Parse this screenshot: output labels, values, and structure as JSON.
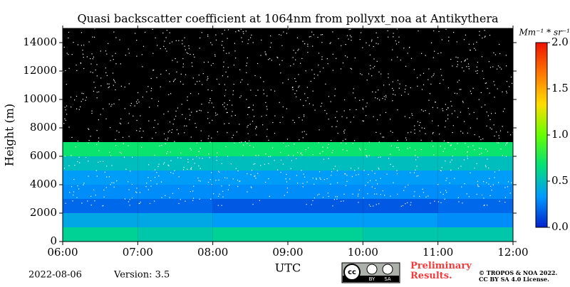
{
  "chart_data": {
    "type": "heatmap",
    "title": "Quasi backscatter coefficient at 1064nm from pollyxt_noa at Antikythera",
    "x_label": "UTC",
    "y_label": "Height (m)",
    "colorbar_label": "Mm⁻¹ * sr⁻¹",
    "x": [
      6.5,
      7.5,
      8.5,
      9.5,
      10.5,
      11.5
    ],
    "y": [
      500,
      1500,
      2500,
      3500,
      4500,
      5500,
      6500,
      7500,
      8500,
      9500,
      10500,
      11500,
      12500,
      13500,
      14500
    ],
    "z": [
      [
        0.6,
        0.55,
        0.6,
        0.6,
        0.55,
        0.55
      ],
      [
        0.4,
        0.4,
        0.35,
        0.35,
        0.35,
        0.3
      ],
      [
        0.2,
        0.2,
        0.15,
        0.15,
        0.15,
        0.2
      ],
      [
        0.3,
        0.3,
        0.3,
        0.3,
        0.3,
        0.3
      ],
      [
        0.35,
        0.35,
        0.35,
        0.35,
        0.35,
        0.35
      ],
      [
        0.5,
        0.5,
        0.5,
        0.5,
        0.5,
        0.5
      ],
      [
        0.7,
        0.7,
        0.7,
        0.7,
        0.7,
        0.7
      ],
      [
        null,
        null,
        null,
        null,
        null,
        null
      ],
      [
        null,
        null,
        null,
        null,
        null,
        null
      ],
      [
        null,
        null,
        null,
        null,
        null,
        null
      ],
      [
        null,
        null,
        null,
        null,
        null,
        null
      ],
      [
        null,
        null,
        null,
        null,
        null,
        null
      ],
      [
        null,
        null,
        null,
        null,
        null,
        null
      ],
      [
        null,
        null,
        null,
        null,
        null,
        null
      ],
      [
        null,
        null,
        null,
        null,
        null,
        null
      ]
    ],
    "colors": [
      "#0022cc",
      "#0099ff",
      "#00e07a",
      "#66ff00",
      "#ffdd00",
      "#ff7700",
      "#ee1100"
    ],
    "background": "#000000",
    "xlim": [
      6,
      12
    ],
    "xticks": [
      {
        "value": 6,
        "label": "06:00"
      },
      {
        "value": 7,
        "label": "07:00"
      },
      {
        "value": 8,
        "label": "08:00"
      },
      {
        "value": 9,
        "label": "09:00"
      },
      {
        "value": 10,
        "label": "10:00"
      },
      {
        "value": 11,
        "label": "11:00"
      },
      {
        "value": 12,
        "label": "12:00"
      }
    ],
    "ylim": [
      0,
      15000
    ],
    "yticks": [
      0,
      2000,
      4000,
      6000,
      8000,
      10000,
      12000,
      14000
    ],
    "clim": [
      0,
      2
    ],
    "cticks": [
      {
        "value": 0,
        "label": "0.0"
      },
      {
        "value": 0.5,
        "label": "0.5"
      },
      {
        "value": 1,
        "label": "1.0"
      },
      {
        "value": 1.5,
        "label": "1.5"
      },
      {
        "value": 2,
        "label": "2.0"
      }
    ]
  },
  "footer": {
    "date": "2022-08-06",
    "version": "Version: 3.5",
    "badge": [
      "cc",
      "BY",
      "SA"
    ],
    "status": "Preliminary Results.",
    "copyright": "© TROPOS & NOA 2022.",
    "license": "CC BY SA 4.0 License."
  }
}
